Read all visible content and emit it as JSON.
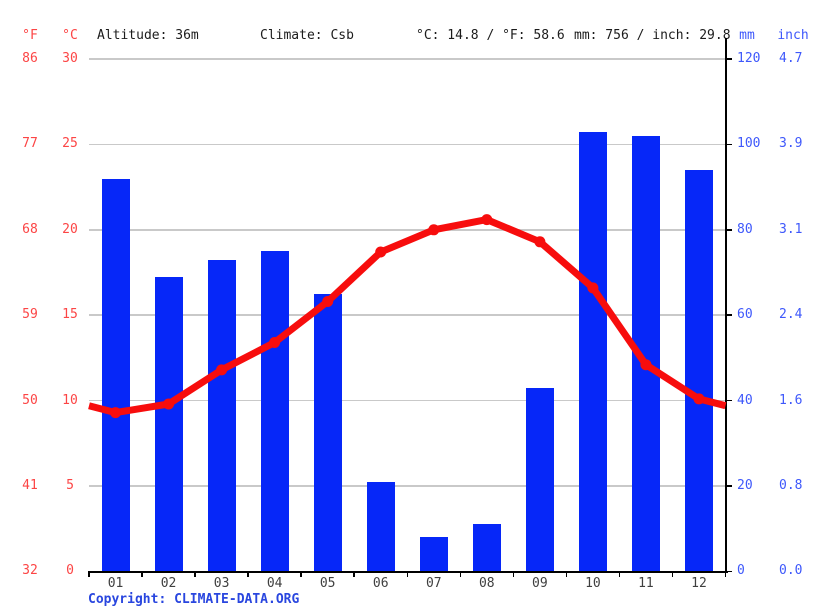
{
  "header": {
    "f_label": "°F",
    "c_label": "°C",
    "altitude": "Altitude: 36m",
    "climate": "Climate: Csb",
    "temp_summary": "°C: 14.8 / °F: 58.6",
    "precip_summary": "mm: 756 / inch: 29.8",
    "mm_label": "mm",
    "inch_label": "inch"
  },
  "axes": {
    "f_ticks": [
      "86",
      "77",
      "68",
      "59",
      "50",
      "41",
      "32"
    ],
    "c_ticks": [
      "30",
      "25",
      "20",
      "15",
      "10",
      "5",
      "0"
    ],
    "mm_ticks": [
      "120",
      "100",
      "80",
      "60",
      "40",
      "20",
      "0"
    ],
    "inch_ticks": [
      "4.7",
      "3.9",
      "3.1",
      "2.4",
      "1.6",
      "0.8",
      "0.0"
    ]
  },
  "chart_data": {
    "type": "bar",
    "subtype": "climograph-bar-plus-line",
    "categories": [
      "01",
      "02",
      "03",
      "04",
      "05",
      "06",
      "07",
      "08",
      "09",
      "10",
      "11",
      "12"
    ],
    "series": [
      {
        "name": "precipitation_mm",
        "type": "bar",
        "values": [
          92,
          69,
          73,
          75,
          65,
          21,
          8,
          11,
          43,
          103,
          102,
          94
        ]
      },
      {
        "name": "temperature_c",
        "type": "line",
        "values": [
          9.3,
          9.8,
          11.8,
          13.4,
          15.8,
          18.7,
          20.0,
          20.6,
          19.3,
          16.6,
          12.1,
          10.1
        ],
        "edge_value": 9.7
      }
    ],
    "temp_axis_c": {
      "min": 0,
      "max": 30,
      "step": 5
    },
    "temp_axis_f": {
      "min": 32,
      "max": 86,
      "step": 9
    },
    "precip_axis_mm": {
      "min": 0,
      "max": 120,
      "step": 20
    },
    "precip_axis_inch": {
      "min": 0.0,
      "max": 4.7,
      "step": 0.8
    },
    "grid": "horizontal-only",
    "legend": "none",
    "annual_mean_c": 14.8,
    "annual_precip_mm": 756
  },
  "footer": {
    "copyright_prefix": "Copyright: ",
    "copyright_link": "CLIMATE-DATA.ORG"
  },
  "colors": {
    "bar": "#0627f8",
    "line": "#f70d0d",
    "red_label": "#fc4545",
    "blue_label": "#3e58fb",
    "copyright": "#2946df",
    "gridline": "#c9c9c9",
    "axis": "#000000",
    "month_label": "#3f3f3f",
    "header_text": "#1c1c1c"
  }
}
